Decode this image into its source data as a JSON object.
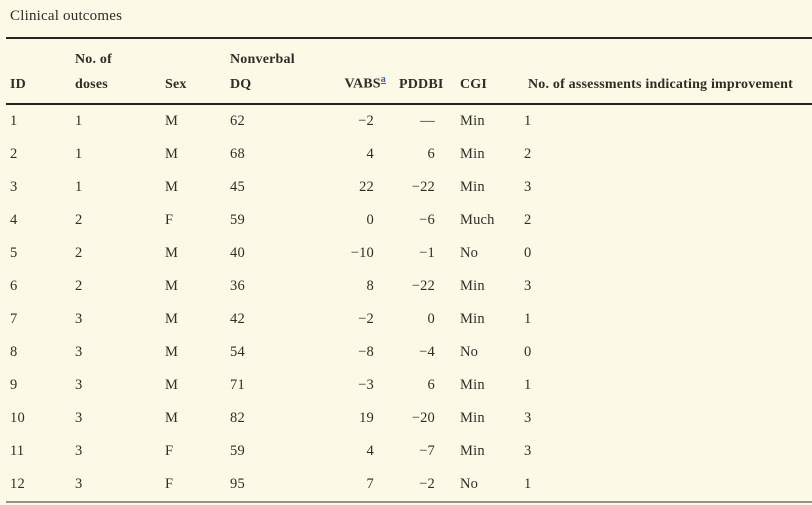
{
  "title": "Clinical outcomes",
  "colors": {
    "background": "#fdf9e7",
    "text": "#2e2e27",
    "rule_dark": "#26261f",
    "rule_light": "#92928a",
    "footnote_link": "#3465a4"
  },
  "table": {
    "header": {
      "id": "ID",
      "doses": "No. of doses",
      "sex": "Sex",
      "dq": "Nonverbal DQ",
      "vabs": "VABS",
      "vabs_footnote": "a",
      "pddbi": "PDDBI",
      "cgi": "CGI",
      "improvement": "No. of assessments indicating improvement"
    },
    "column_keys": [
      "id",
      "doses",
      "sex",
      "dq",
      "vabs",
      "pddbi",
      "cgi",
      "improvement"
    ],
    "rows": [
      [
        "1",
        "1",
        "M",
        "62",
        "−2",
        "—",
        "Min",
        "1"
      ],
      [
        "2",
        "1",
        "M",
        "68",
        "4",
        "6",
        "Min",
        "2"
      ],
      [
        "3",
        "1",
        "M",
        "45",
        "22",
        "−22",
        "Min",
        "3"
      ],
      [
        "4",
        "2",
        "F",
        "59",
        "0",
        "−6",
        "Much",
        "2"
      ],
      [
        "5",
        "2",
        "M",
        "40",
        "−10",
        "−1",
        "No",
        "0"
      ],
      [
        "6",
        "2",
        "M",
        "36",
        "8",
        "−22",
        "Min",
        "3"
      ],
      [
        "7",
        "3",
        "M",
        "42",
        "−2",
        "0",
        "Min",
        "1"
      ],
      [
        "8",
        "3",
        "M",
        "54",
        "−8",
        "−4",
        "No",
        "0"
      ],
      [
        "9",
        "3",
        "M",
        "71",
        "−3",
        "6",
        "Min",
        "1"
      ],
      [
        "10",
        "3",
        "M",
        "82",
        "19",
        "−20",
        "Min",
        "3"
      ],
      [
        "11",
        "3",
        "F",
        "59",
        "4",
        "−7",
        "Min",
        "3"
      ],
      [
        "12",
        "3",
        "F",
        "95",
        "7",
        "−2",
        "No",
        "1"
      ]
    ]
  }
}
